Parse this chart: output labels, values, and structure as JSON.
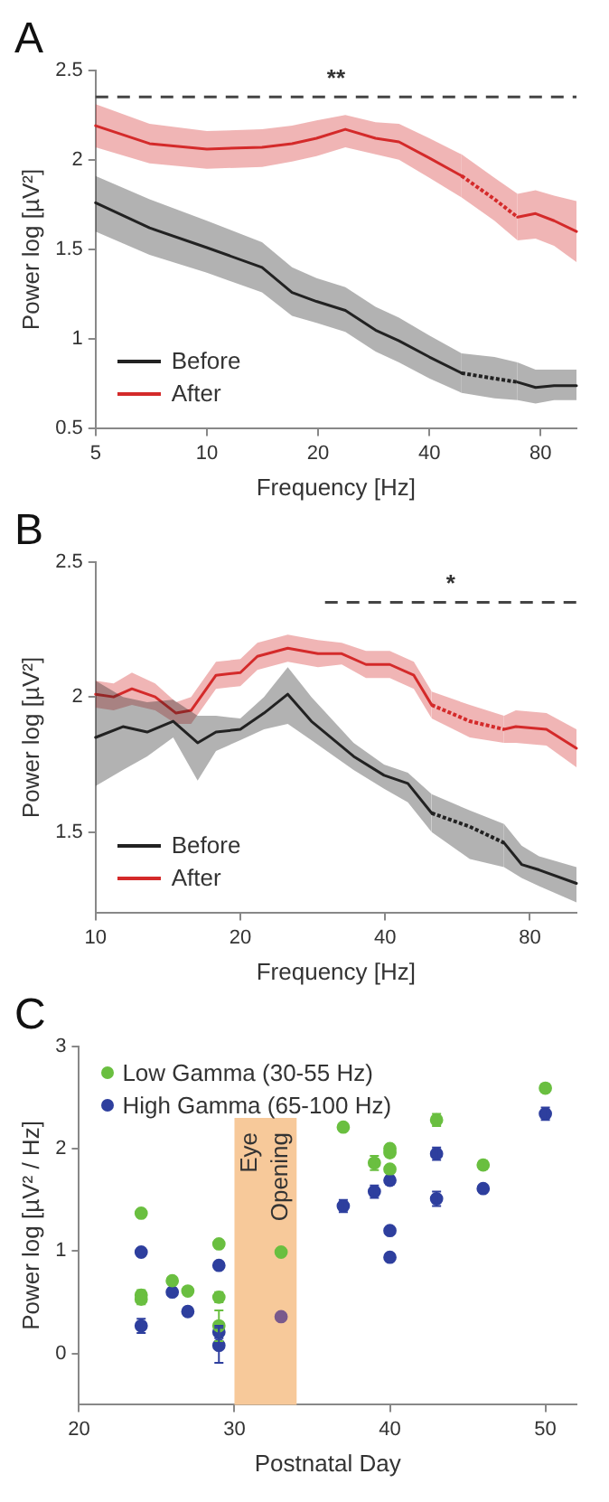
{
  "chart_data": [
    {
      "type": "line",
      "title": "A",
      "xlabel": "Frequency [Hz]",
      "ylabel": "Power log [µV²]",
      "log": "x",
      "legend": "bottom left",
      "xlim": [
        5,
        100
      ],
      "xticks": [
        5,
        10,
        20,
        40,
        80
      ],
      "ylim": [
        0.5,
        2.5
      ],
      "yticks": [
        0.5,
        1,
        1.5,
        2,
        2.5
      ],
      "annotations": [
        "**"
      ],
      "series": [
        {
          "name": "Before",
          "color": "#222222",
          "x": [
            5,
            7,
            10,
            14.1,
            17,
            19.8,
            23.7,
            28.6,
            33.1,
            40,
            48.9
          ],
          "values": [
            1.76,
            1.62,
            1.51,
            1.4,
            1.26,
            1.21,
            1.16,
            1.05,
            0.99,
            0.9,
            0.81
          ],
          "upper": [
            1.91,
            1.78,
            1.66,
            1.54,
            1.4,
            1.34,
            1.29,
            1.18,
            1.12,
            1.02,
            0.92
          ],
          "lower": [
            1.6,
            1.47,
            1.37,
            1.26,
            1.13,
            1.09,
            1.04,
            0.93,
            0.87,
            0.78,
            0.7
          ]
        },
        {
          "name": "After",
          "color": "#d42a2a",
          "x": [
            5,
            7,
            10,
            14.1,
            17,
            19.8,
            23.7,
            28.6,
            33.1,
            40,
            48.9
          ],
          "values": [
            2.19,
            2.09,
            2.06,
            2.07,
            2.09,
            2.12,
            2.17,
            2.12,
            2.1,
            2.01,
            1.91
          ],
          "upper": [
            2.31,
            2.2,
            2.16,
            2.17,
            2.19,
            2.22,
            2.25,
            2.21,
            2.2,
            2.12,
            2.03
          ],
          "lower": [
            2.07,
            1.98,
            1.95,
            1.96,
            1.99,
            2.02,
            2.07,
            2.03,
            2.0,
            1.9,
            1.79
          ]
        },
        {
          "color": "#222222",
          "line_style": "dotted",
          "x": [
            48.9,
            60,
            69.3
          ],
          "values": [
            0.81,
            0.78,
            0.76
          ],
          "upper": [
            0.92,
            0.9,
            0.87
          ],
          "lower": [
            0.7,
            0.67,
            0.66
          ]
        },
        {
          "color": "#d42a2a",
          "line_style": "dotted",
          "x": [
            48.9,
            60,
            69.3
          ],
          "values": [
            1.91,
            1.78,
            1.68
          ],
          "upper": [
            2.03,
            1.9,
            1.81
          ],
          "lower": [
            1.79,
            1.66,
            1.55
          ]
        },
        {
          "color": "#222222",
          "x": [
            69.3,
            77.5,
            87,
            100
          ],
          "values": [
            0.76,
            0.73,
            0.74,
            0.74
          ],
          "upper": [
            0.87,
            0.83,
            0.83,
            0.83
          ],
          "lower": [
            0.66,
            0.64,
            0.66,
            0.66
          ]
        },
        {
          "color": "#d42a2a",
          "x": [
            69.3,
            77.5,
            87,
            100
          ],
          "values": [
            1.68,
            1.7,
            1.66,
            1.6
          ],
          "upper": [
            1.81,
            1.83,
            1.8,
            1.77
          ],
          "lower": [
            1.55,
            1.56,
            1.52,
            1.43
          ]
        },
        {
          "color": "#444444",
          "line_style": "dashed",
          "x": [
            5,
            100
          ],
          "values": [
            2.35,
            2.35
          ]
        }
      ]
    },
    {
      "type": "line",
      "title": "B",
      "xlabel": "Frequency [Hz]",
      "ylabel": "Power log [µV²]",
      "log": "x",
      "legend": "bottom left",
      "xlim": [
        10,
        100
      ],
      "xticks": [
        10,
        20,
        40,
        80
      ],
      "ylim": [
        1.2,
        2.5
      ],
      "yticks": [
        1.5,
        2,
        2.5
      ],
      "annotations": [
        "*"
      ],
      "series": [
        {
          "name": "Before",
          "color": "#222222",
          "x": [
            10,
            11.4,
            12.8,
            14.5,
            16.3,
            17.8,
            20,
            22.4,
            25.1,
            28.1,
            34.4,
            39.8,
            44.6,
            50
          ],
          "values": [
            1.85,
            1.89,
            1.87,
            1.91,
            1.83,
            1.87,
            1.88,
            1.94,
            2.01,
            1.91,
            1.78,
            1.71,
            1.68,
            1.57
          ],
          "upper": [
            2.06,
            2.0,
            1.98,
            1.99,
            1.93,
            1.93,
            1.92,
            2.0,
            2.11,
            2.0,
            1.83,
            1.75,
            1.72,
            1.64
          ],
          "lower": [
            1.67,
            1.73,
            1.78,
            1.85,
            1.69,
            1.8,
            1.84,
            1.88,
            1.9,
            1.84,
            1.73,
            1.66,
            1.61,
            1.5
          ]
        },
        {
          "name": "After",
          "color": "#d42a2a",
          "x": [
            10,
            10.9,
            11.9,
            13.3,
            14.7,
            15.8,
            17.8,
            20,
            21.7,
            25.1,
            29,
            32.5,
            36.5,
            40.9,
            45.9,
            50
          ],
          "values": [
            2.01,
            2.0,
            2.03,
            2.0,
            1.94,
            1.95,
            2.08,
            2.09,
            2.15,
            2.18,
            2.16,
            2.16,
            2.12,
            2.12,
            2.08,
            1.97
          ],
          "upper": [
            2.06,
            2.05,
            2.09,
            2.05,
            1.98,
            2.0,
            2.13,
            2.14,
            2.2,
            2.23,
            2.21,
            2.2,
            2.17,
            2.17,
            2.13,
            2.02
          ],
          "lower": [
            1.96,
            1.95,
            1.97,
            1.95,
            1.9,
            1.9,
            2.03,
            2.04,
            2.1,
            2.13,
            2.11,
            2.12,
            2.07,
            2.07,
            2.03,
            1.92
          ]
        },
        {
          "color": "#222222",
          "line_style": "dotted",
          "x": [
            50,
            60,
            70.7
          ],
          "values": [
            1.57,
            1.52,
            1.46
          ],
          "upper": [
            1.64,
            1.58,
            1.53
          ],
          "lower": [
            1.5,
            1.4,
            1.37
          ]
        },
        {
          "color": "#d42a2a",
          "line_style": "dotted",
          "x": [
            50,
            60,
            70.7
          ],
          "values": [
            1.97,
            1.91,
            1.88
          ],
          "upper": [
            2.02,
            1.97,
            1.93
          ],
          "lower": [
            1.92,
            1.85,
            1.83
          ]
        },
        {
          "color": "#222222",
          "x": [
            70.7,
            76.9,
            83.6,
            100
          ],
          "values": [
            1.46,
            1.38,
            1.36,
            1.31
          ],
          "upper": [
            1.53,
            1.45,
            1.41,
            1.37
          ],
          "lower": [
            1.37,
            1.33,
            1.3,
            1.24
          ]
        },
        {
          "color": "#d42a2a",
          "x": [
            70.7,
            74.8,
            86.6,
            100
          ],
          "values": [
            1.88,
            1.89,
            1.88,
            1.81
          ],
          "upper": [
            1.93,
            1.95,
            1.94,
            1.88
          ],
          "lower": [
            1.83,
            1.83,
            1.82,
            1.74
          ]
        },
        {
          "color": "#444444",
          "line_style": "dashed",
          "x": [
            30,
            100
          ],
          "values": [
            2.35,
            2.35
          ]
        }
      ]
    },
    {
      "type": "scatter",
      "title": "C",
      "xlabel": "Postnatal Day",
      "ylabel": "Power log [µV² / Hz]",
      "legend": "top left",
      "marker": "circle",
      "xlim": [
        20,
        52
      ],
      "xticks": [
        20,
        30,
        40,
        50
      ],
      "ylim": [
        -0.5,
        3
      ],
      "yticks": [
        0,
        1,
        2,
        3
      ],
      "bands": [
        {
          "axis": "x",
          "from": 30,
          "to": 34,
          "label": "Eye Opening",
          "color": "#f7c99a"
        }
      ],
      "series": [
        {
          "name": "Low Gamma (30-55 Hz)",
          "color": "#6abf40",
          "x": [
            24,
            24,
            24,
            26,
            27,
            29,
            29,
            29,
            33,
            37,
            39,
            40,
            40,
            40,
            43,
            46,
            50
          ],
          "values": [
            1.37,
            0.57,
            0.53,
            0.71,
            0.61,
            1.07,
            0.55,
            0.27,
            0.99,
            2.21,
            1.86,
            2.0,
            1.96,
            1.8,
            2.28,
            1.84,
            2.59
          ],
          "errors": [
            null,
            0.05,
            0.05,
            null,
            0.04,
            null,
            0.05,
            0.15,
            null,
            null,
            0.07,
            null,
            null,
            null,
            0.06,
            0.04,
            0.04
          ]
        },
        {
          "name": "High Gamma (65-100 Hz)",
          "color": "#2e3f9e",
          "colors": [
            "#2e3f9e",
            "#2e3f9e",
            "#2e3f9e",
            "#2e3f9e",
            "#2e3f9e",
            "#2e3f9e",
            "#2e3f9e",
            "#7a5a8c",
            "#2e3f9e",
            "#2e3f9e",
            "#2e3f9e",
            "#2e3f9e",
            "#2e3f9e",
            "#2e3f9e",
            "#2e3f9e",
            "#2e3f9e",
            "#2e3f9e"
          ],
          "x": [
            24,
            24,
            26,
            27,
            29,
            29,
            29,
            33,
            37,
            39,
            40,
            40,
            40,
            43,
            43,
            46,
            50
          ],
          "values": [
            0.99,
            0.27,
            0.6,
            0.41,
            0.86,
            0.21,
            0.08,
            0.36,
            1.44,
            1.58,
            1.69,
            1.2,
            0.94,
            1.95,
            1.51,
            1.61,
            2.34
          ],
          "errors": [
            null,
            0.07,
            null,
            0.04,
            null,
            0.06,
            0.17,
            null,
            0.06,
            0.06,
            0.04,
            null,
            null,
            0.06,
            0.07,
            null,
            0.06
          ]
        }
      ]
    }
  ]
}
